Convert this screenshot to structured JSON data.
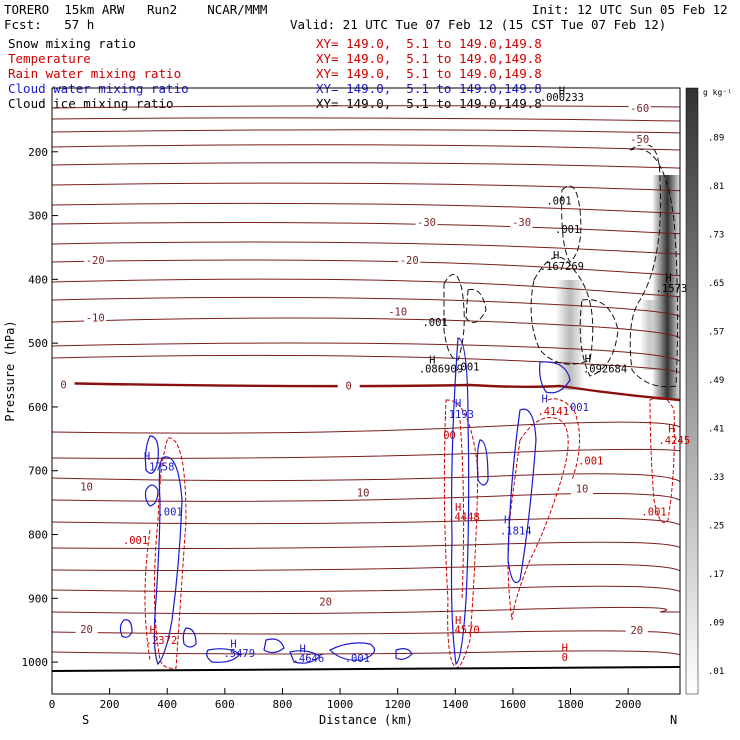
{
  "header": {
    "model": "TORERO  15km ARW   Run2    NCAR/MMM",
    "init": "Init: 12 UTC Sun 05 Feb 12",
    "fcst": "Fcst:   57 h",
    "valid": "Valid: 21 UTC Tue 07 Feb 12 (15 CST Tue 07 Feb 12)"
  },
  "fields": [
    {
      "name": "Snow mixing ratio",
      "color": "#000000",
      "xy": "XY= 149.0,  5.1 to 149.0,149.8"
    },
    {
      "name": "Temperature",
      "color": "#cc0000",
      "xy": "XY= 149.0,  5.1 to 149.0,149.8"
    },
    {
      "name": "Rain water mixing ratio",
      "color": "#cc0000",
      "xy": "XY= 149.0,  5.1 to 149.0,149.8"
    },
    {
      "name": "Cloud water mixing ratio",
      "color": "#1a1acc",
      "xy": "XY= 149.0,  5.1 to 149.0,149.8"
    },
    {
      "name": "Cloud ice mixing ratio",
      "color": "#000000",
      "xy": "XY= 149.0,  5.1 to 149.0,149.8"
    }
  ],
  "chart_data": {
    "type": "cross-section contour",
    "xlabel": "Distance (km)",
    "ylabel": "Pressure (hPa)",
    "x_ticks": [
      0,
      200,
      400,
      600,
      800,
      1000,
      1200,
      1400,
      1600,
      1800,
      2000
    ],
    "y_ticks": [
      200,
      300,
      400,
      500,
      600,
      700,
      800,
      900,
      1000
    ],
    "xlim": [
      0,
      2180
    ],
    "ylim": [
      1050,
      100
    ],
    "endpoints": {
      "left": "S",
      "right": "N"
    },
    "colorbar": {
      "unit": "g kg⁻¹",
      "ticks": [
        ".01",
        ".09",
        ".17",
        ".25",
        ".33",
        ".41",
        ".49",
        ".57",
        ".65",
        ".73",
        ".81",
        ".89"
      ]
    },
    "temperature_contours": [
      {
        "label": "-60",
        "x": 2040,
        "p": 131
      },
      {
        "label": "-50",
        "x": 2040,
        "p": 180
      },
      {
        "label": "-30",
        "x": 1300,
        "p": 310
      },
      {
        "label": "-30",
        "x": 1630,
        "p": 310
      },
      {
        "label": "-20",
        "x": 150,
        "p": 370
      },
      {
        "label": "-20",
        "x": 1240,
        "p": 370
      },
      {
        "label": "-10",
        "x": 150,
        "p": 460
      },
      {
        "label": "-10",
        "x": 1200,
        "p": 450
      },
      {
        "label": "0",
        "x": 40,
        "p": 565
      },
      {
        "label": "0",
        "x": 1030,
        "p": 566
      },
      {
        "label": "10",
        "x": 120,
        "p": 725
      },
      {
        "label": "10",
        "x": 1080,
        "p": 734
      },
      {
        "label": "10",
        "x": 1840,
        "p": 728
      },
      {
        "label": "20",
        "x": 120,
        "p": 948
      },
      {
        "label": "20",
        "x": 950,
        "p": 905
      },
      {
        "label": "20",
        "x": 2030,
        "p": 950
      }
    ],
    "annotations": [
      {
        "text": "H",
        "x": 1770,
        "p": 110,
        "color": "#000000"
      },
      {
        "text": ".000233",
        "x": 1770,
        "p": 120,
        "color": "#000000"
      },
      {
        "text": ".001",
        "x": 1760,
        "p": 283,
        "color": "#000000"
      },
      {
        "text": ".001",
        "x": 1790,
        "p": 327,
        "color": "#000000"
      },
      {
        "text": "H",
        "x": 1750,
        "p": 368,
        "color": "#000000"
      },
      {
        "text": ".167269",
        "x": 1770,
        "p": 385,
        "color": "#000000"
      },
      {
        "text": "H",
        "x": 2140,
        "p": 403,
        "color": "#000000"
      },
      {
        "text": ".1573",
        "x": 2150,
        "p": 420,
        "color": "#000000"
      },
      {
        "text": ".001",
        "x": 1330,
        "p": 473,
        "color": "#000000"
      },
      {
        "text": "H",
        "x": 1320,
        "p": 532,
        "color": "#000000"
      },
      {
        "text": ".086909",
        "x": 1350,
        "p": 546,
        "color": "#000000"
      },
      {
        "text": ".001",
        "x": 1440,
        "p": 543,
        "color": "#000000"
      },
      {
        "text": "H",
        "x": 1860,
        "p": 530,
        "color": "#000000"
      },
      {
        "text": ".092684",
        "x": 1920,
        "p": 546,
        "color": "#000000"
      },
      {
        "text": "H",
        "x": 1410,
        "p": 600,
        "color": "#1a1acc"
      },
      {
        "text": ".1193",
        "x": 1410,
        "p": 617,
        "color": "#1a1acc"
      },
      {
        "text": "H",
        "x": 1710,
        "p": 593,
        "color": "#1a1acc"
      },
      {
        "text": ".4141",
        "x": 1740,
        "p": 613,
        "color": "#cc0000"
      },
      {
        "text": ".001",
        "x": 1820,
        "p": 606,
        "color": "#1a1acc"
      },
      {
        "text": "00",
        "x": 1380,
        "p": 650,
        "color": "#cc0000"
      },
      {
        "text": "H",
        "x": 2150,
        "p": 640,
        "color": "#cc0000"
      },
      {
        "text": ".4245",
        "x": 2160,
        "p": 658,
        "color": "#cc0000"
      },
      {
        "text": ".001",
        "x": 1870,
        "p": 690,
        "color": "#cc0000"
      },
      {
        "text": ".001",
        "x": 2090,
        "p": 770,
        "color": "#cc0000"
      },
      {
        "text": "H",
        "x": 330,
        "p": 683,
        "color": "#1a1acc"
      },
      {
        "text": ".1758",
        "x": 370,
        "p": 700,
        "color": "#1a1acc"
      },
      {
        "text": ".001",
        "x": 410,
        "p": 770,
        "color": "#1a1acc"
      },
      {
        "text": ".001",
        "x": 290,
        "p": 815,
        "color": "#cc0000"
      },
      {
        "text": "H",
        "x": 1410,
        "p": 763,
        "color": "#cc0000"
      },
      {
        "text": ".4448",
        "x": 1430,
        "p": 778,
        "color": "#cc0000"
      },
      {
        "text": "H",
        "x": 1580,
        "p": 783,
        "color": "#1a1acc"
      },
      {
        "text": ".1814",
        "x": 1610,
        "p": 800,
        "color": "#1a1acc"
      },
      {
        "text": "H",
        "x": 350,
        "p": 955,
        "color": "#cc0000"
      },
      {
        "text": ".2372",
        "x": 380,
        "p": 972,
        "color": "#cc0000"
      },
      {
        "text": "H",
        "x": 1410,
        "p": 940,
        "color": "#cc0000"
      },
      {
        "text": ".4570",
        "x": 1430,
        "p": 955,
        "color": "#cc0000"
      },
      {
        "text": "H",
        "x": 630,
        "p": 977,
        "color": "#1a1acc"
      },
      {
        "text": ".5479",
        "x": 650,
        "p": 992,
        "color": "#1a1acc"
      },
      {
        "text": "H",
        "x": 870,
        "p": 985,
        "color": "#1a1acc"
      },
      {
        "text": ".4646",
        "x": 890,
        "p": 1000,
        "color": "#1a1acc"
      },
      {
        "text": ".001",
        "x": 1060,
        "p": 1000,
        "color": "#1a1acc"
      },
      {
        "text": "H",
        "x": 1780,
        "p": 983,
        "color": "#cc0000"
      },
      {
        "text": "0",
        "x": 1780,
        "p": 998,
        "color": "#cc0000"
      }
    ]
  }
}
